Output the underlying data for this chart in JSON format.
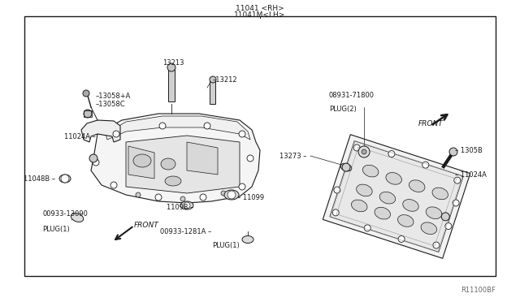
{
  "bg_color": "#ffffff",
  "line_color": "#1a1a1a",
  "fig_width": 6.4,
  "fig_height": 3.72,
  "dpi": 100,
  "title_text1": "11041 <RH>",
  "title_text2": "11041M<LH>",
  "watermark": "R11100BF"
}
